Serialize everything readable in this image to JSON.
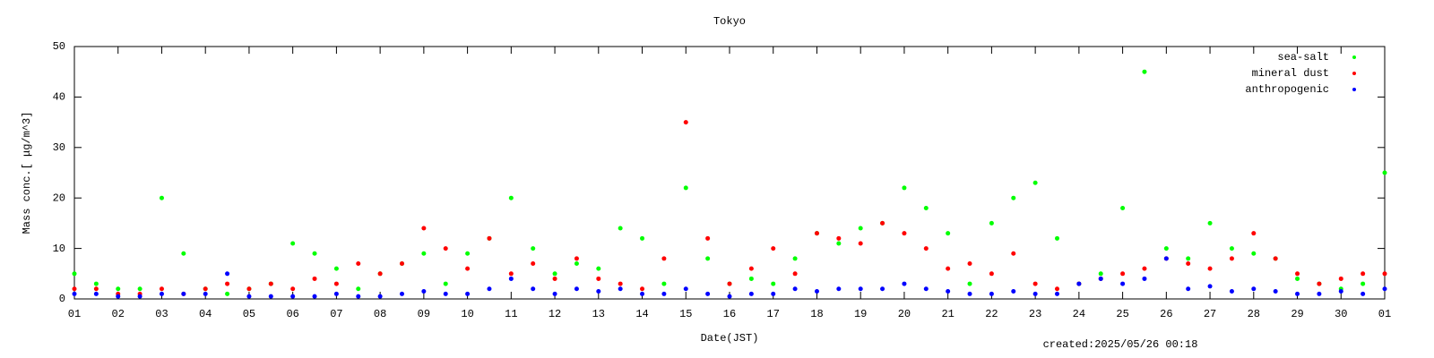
{
  "chart_data": {
    "type": "scatter",
    "title": "Tokyo",
    "xlabel": "Date(JST)",
    "ylabel": "Mass conc.[ μg/m^3]",
    "annotation": "created:2025/05/26 00:18",
    "legend": "top right",
    "x": [
      1,
      1.5,
      2,
      2.5,
      3,
      3.5,
      4,
      4.5,
      5,
      5.5,
      6,
      6.5,
      7,
      7.5,
      8,
      8.5,
      9,
      9.5,
      10,
      10.5,
      11,
      11.5,
      12,
      12.5,
      13,
      13.5,
      14,
      14.5,
      15,
      15.5,
      16,
      16.5,
      17,
      17.5,
      18,
      18.5,
      19,
      19.5,
      20,
      20.5,
      21,
      21.5,
      22,
      22.5,
      23,
      23.5,
      24,
      24.5,
      25,
      25.5,
      26,
      26.5,
      27,
      27.5,
      28,
      28.5,
      29,
      29.5,
      30,
      30.5,
      31
    ],
    "series": [
      {
        "name": "sea-salt",
        "color": "#00ff00",
        "values": [
          5,
          3,
          2,
          2,
          20,
          9,
          2,
          1,
          2,
          3,
          11,
          9,
          6,
          2,
          5,
          7,
          9,
          3,
          9,
          12,
          20,
          10,
          5,
          7,
          6,
          14,
          12,
          3,
          22,
          8,
          3,
          4,
          3,
          8,
          13,
          11,
          14,
          15,
          22,
          18,
          13,
          3,
          15,
          20,
          23,
          12,
          3,
          5,
          18,
          45,
          10,
          8,
          15,
          10,
          9,
          8,
          4,
          3,
          2,
          3,
          25
        ]
      },
      {
        "name": "mineral dust",
        "color": "#ff0000",
        "values": [
          2,
          2,
          1,
          1,
          2,
          1,
          2,
          3,
          2,
          3,
          2,
          4,
          3,
          7,
          5,
          7,
          14,
          10,
          6,
          12,
          5,
          7,
          4,
          8,
          4,
          3,
          2,
          8,
          35,
          12,
          3,
          6,
          10,
          5,
          13,
          12,
          11,
          15,
          13,
          10,
          6,
          7,
          5,
          9,
          3,
          2,
          3,
          4,
          5,
          6,
          8,
          7,
          6,
          8,
          13,
          8,
          5,
          3,
          4,
          5,
          5
        ]
      },
      {
        "name": "anthropogenic",
        "color": "#0000ff",
        "values": [
          1,
          1,
          0.5,
          0.5,
          1,
          1,
          1,
          5,
          0.5,
          0.5,
          0.5,
          0.5,
          1,
          0.5,
          0.5,
          1,
          1.5,
          1,
          1,
          2,
          4,
          2,
          1,
          2,
          1.5,
          2,
          1,
          1,
          2,
          1,
          0.5,
          1,
          1,
          2,
          1.5,
          2,
          2,
          2,
          3,
          2,
          1.5,
          1,
          1,
          1.5,
          1,
          1,
          3,
          4,
          3,
          4,
          8,
          2,
          2.5,
          1.5,
          2,
          1.5,
          1,
          1,
          1.5,
          1,
          2
        ]
      }
    ],
    "xlim": [
      1,
      31
    ],
    "xticks": [
      {
        "value": 1,
        "label": "01"
      },
      {
        "value": 2,
        "label": "02"
      },
      {
        "value": 3,
        "label": "03"
      },
      {
        "value": 4,
        "label": "04"
      },
      {
        "value": 5,
        "label": "05"
      },
      {
        "value": 6,
        "label": "06"
      },
      {
        "value": 7,
        "label": "07"
      },
      {
        "value": 8,
        "label": "08"
      },
      {
        "value": 9,
        "label": "09"
      },
      10,
      11,
      12,
      13,
      14,
      15,
      16,
      17,
      18,
      19,
      20,
      21,
      22,
      23,
      24,
      25,
      26,
      27,
      28,
      29,
      30,
      {
        "value": 31,
        "label": "01"
      }
    ],
    "ylim": [
      0,
      50
    ],
    "yticks": [
      0,
      10,
      20,
      30,
      40,
      50
    ]
  }
}
